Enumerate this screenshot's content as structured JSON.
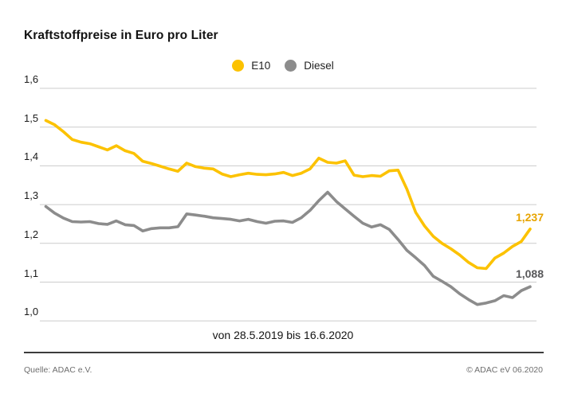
{
  "title": "Kraftstoffpreise in Euro pro Liter",
  "caption": "von 28.5.2019 bis 16.6.2020",
  "footer": {
    "source": "Quelle: ADAC e.V.",
    "copyright": "© ADAC eV 06.2020"
  },
  "colors": {
    "e10": "#FCC200",
    "e10_label": "#E7A400",
    "diesel": "#8C8C8C",
    "diesel_label": "#58585A",
    "gridline": "#CCCCCC",
    "baseline_rule": "#3B3B3B"
  },
  "chart_data": {
    "type": "line",
    "title": "Kraftstoffpreise in Euro pro Liter",
    "xlabel": "von 28.5.2019 bis 16.6.2020",
    "ylabel": "Euro pro Liter",
    "x_unit": "week",
    "x_range": [
      "28.5.2019",
      "16.6.2020"
    ],
    "ylim": [
      1.0,
      1.6
    ],
    "yticks": [
      "1,6",
      "1,5",
      "1,4",
      "1,3",
      "1,2",
      "1,1",
      "1,0"
    ],
    "grid": true,
    "legend_position": "top-center",
    "series": [
      {
        "name": "E10",
        "color": "#FCC200",
        "label_color": "#E7A400",
        "last_value_label": "1,237",
        "values": [
          1.517,
          1.506,
          1.488,
          1.468,
          1.461,
          1.457,
          1.449,
          1.441,
          1.452,
          1.439,
          1.432,
          1.412,
          1.406,
          1.399,
          1.392,
          1.386,
          1.407,
          1.398,
          1.394,
          1.392,
          1.379,
          1.372,
          1.377,
          1.381,
          1.378,
          1.377,
          1.379,
          1.383,
          1.375,
          1.381,
          1.392,
          1.42,
          1.409,
          1.407,
          1.413,
          1.376,
          1.372,
          1.375,
          1.373,
          1.387,
          1.389,
          1.34,
          1.28,
          1.245,
          1.218,
          1.2,
          1.186,
          1.17,
          1.151,
          1.137,
          1.135,
          1.162,
          1.175,
          1.192,
          1.205,
          1.237
        ]
      },
      {
        "name": "Diesel",
        "color": "#8C8C8C",
        "label_color": "#58585A",
        "last_value_label": "1,088",
        "values": [
          1.295,
          1.278,
          1.265,
          1.256,
          1.255,
          1.256,
          1.251,
          1.249,
          1.258,
          1.248,
          1.246,
          1.232,
          1.238,
          1.24,
          1.24,
          1.243,
          1.276,
          1.273,
          1.27,
          1.266,
          1.264,
          1.262,
          1.258,
          1.262,
          1.256,
          1.252,
          1.257,
          1.258,
          1.254,
          1.266,
          1.285,
          1.31,
          1.332,
          1.308,
          1.289,
          1.27,
          1.252,
          1.242,
          1.248,
          1.236,
          1.21,
          1.182,
          1.163,
          1.143,
          1.115,
          1.102,
          1.088,
          1.07,
          1.055,
          1.042,
          1.046,
          1.052,
          1.065,
          1.06,
          1.078,
          1.088
        ]
      }
    ]
  }
}
